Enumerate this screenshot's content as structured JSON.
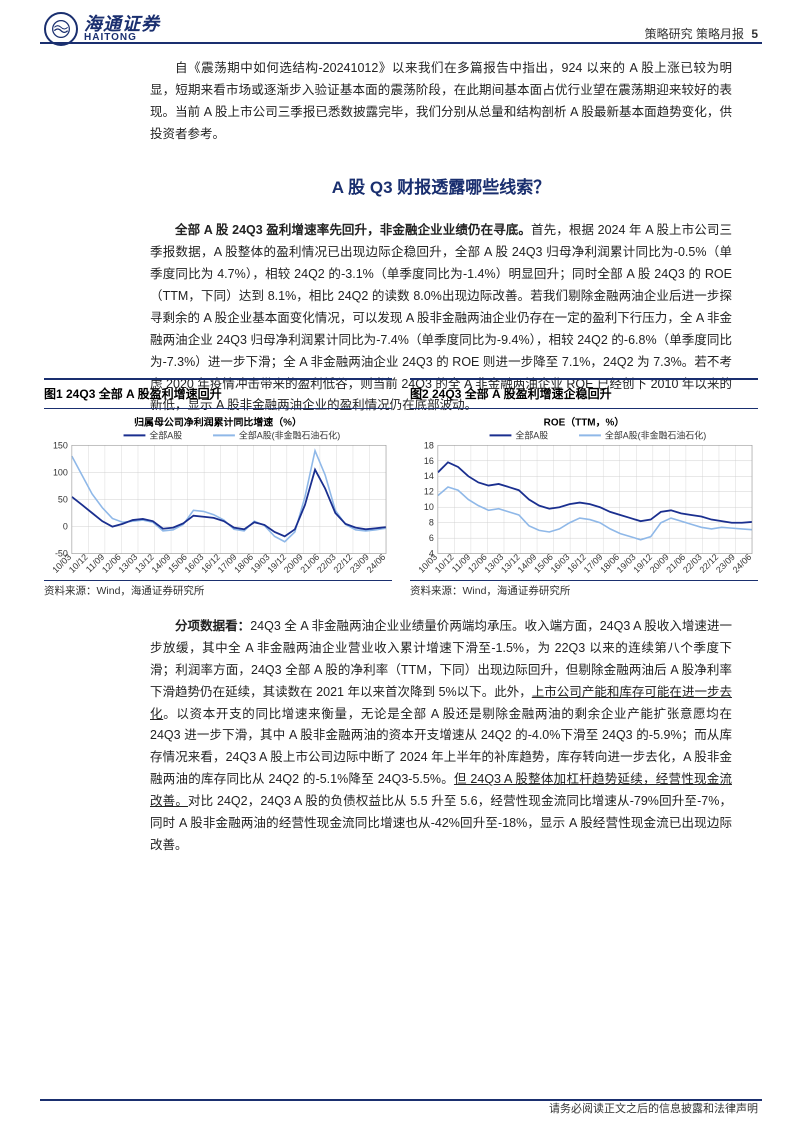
{
  "header": {
    "brand_cn": "海通证券",
    "brand_en": "HAITONG",
    "right": "策略研究 策略月报",
    "page_num": "5"
  },
  "intro_para": "自《震荡期中如何选结构-20241012》以来我们在多篇报告中指出，924 以来的 A 股上涨已较为明显，短期来看市场或逐渐步入验证基本面的震荡阶段，在此期间基本面占优行业望在震荡期迎来较好的表现。当前 A 股上市公司三季报已悉数披露完毕，我们分别从总量和结构剖析 A 股最新基本面趋势变化，供投资者参考。",
  "main_title": "A 股 Q3 财报透露哪些线索？",
  "para2_lead": "全部 A 股 24Q3 盈利增速率先回升，非金融企业业绩仍在寻底。",
  "para2_rest": "首先，根据 2024 年 A 股上市公司三季报数据，A 股整体的盈利情况已出现边际企稳回升，全部 A 股 24Q3 归母净利润累计同比为-0.5%（单季度同比为 4.7%），相较 24Q2 的-3.1%（单季度同比为-1.4%）明显回升；同时全部 A 股 24Q3 的 ROE（TTM，下同）达到 8.1%，相比 24Q2 的读数 8.0%出现边际改善。若我们剔除金融两油企业后进一步探寻剩余的 A 股企业基本面变化情况，可以发现 A 股非金融两油企业仍存在一定的盈利下行压力，全 A 非金融两油企业 24Q3 归母净利润累计同比为-7.4%（单季度同比为-9.4%），相较 24Q2 的-6.8%（单季度同比为-7.3%）进一步下滑；全 A 非金融两油企业 24Q3 的 ROE 则进一步降至 7.1%，24Q2 为 7.3%。若不考虑 2020 年疫情冲击带来的盈利低谷，则当前 24Q3 的全 A 非金融两油企业 ROE 已经创下 2010 年以来的新低，显示 A 股非金融两油企业的盈利情况仍在底部波动。",
  "para3_lead": "分项数据看：",
  "para3_rest_a": "24Q3 全 A 非金融两油企业业绩量价两端均承压。收入端方面，24Q3 A 股收入增速进一步放缓，其中全 A 非金融两油企业营业收入累计增速下滑至-1.5%，为 22Q3 以来的连续第八个季度下滑；利润率方面，24Q3 全部 A 股的净利率（TTM，下同）出现边际回升，但剔除金融两油后 A 股净利率下滑趋势仍在延续，其读数在 2021 年以来首次降到 5%以下。此外，",
  "para3_ul_1": "上市公司产能和库存可能在进一步去化",
  "para3_rest_b": "。以资本开支的同比增速来衡量，无论是全部 A 股还是剔除金融两油的剩余企业产能扩张意愿均在 24Q3 进一步下滑，其中 A 股非金融两油的资本开支增速从 24Q2 的-4.0%下滑至 24Q3 的-5.9%；而从库存情况来看，24Q3 A 股上市公司边际中断了 2024 年上半年的补库趋势，库存转向进一步去化，A 股非金融两油的库存同比从 24Q2 的-5.1%降至 24Q3-5.5%。",
  "para3_ul_2": "但 24Q3 A 股整体加杠杆趋势延续，经营性现金流改善。",
  "para3_rest_c": "对比 24Q2，24Q3 A 股的负债权益比从 5.5 升至 5.6，经营性现金流同比增速从-79%回升至-7%，同时 A 股非金融两油的经营性现金流同比增速也从-42%回升至-18%，显示 A 股经营性现金流已出现边际改善。",
  "chart1": {
    "title": "图1  24Q3 全部 A 股盈利增速回升",
    "inner_title": "归属母公司净利润累计同比增速（%）",
    "legend": [
      "全部A股",
      "全部A股(非金融石油石化)"
    ],
    "source": "资料来源：Wind，海通证券研究所",
    "ylim": [
      -50,
      150
    ],
    "yticks": [
      -50,
      0,
      50,
      100,
      150
    ],
    "xticks": [
      "10/03",
      "10/12",
      "11/09",
      "12/06",
      "13/03",
      "13/12",
      "14/09",
      "15/06",
      "16/03",
      "16/12",
      "17/09",
      "18/06",
      "19/03",
      "19/12",
      "20/09",
      "21/06",
      "22/03",
      "22/12",
      "23/09",
      "24/06"
    ],
    "series_colors": [
      "#1a2f8f",
      "#8fb8e8"
    ],
    "grid_color": "#d0d0d0",
    "bg": "#ffffff",
    "s1": [
      55,
      40,
      25,
      10,
      0,
      5,
      12,
      14,
      10,
      -4,
      -2,
      6,
      20,
      18,
      16,
      10,
      -2,
      -5,
      8,
      3,
      -10,
      -18,
      -5,
      40,
      105,
      70,
      25,
      5,
      -2,
      -5,
      -3,
      -1
    ],
    "s2": [
      130,
      95,
      60,
      35,
      15,
      8,
      10,
      12,
      8,
      -8,
      -6,
      4,
      30,
      28,
      22,
      12,
      -5,
      -8,
      10,
      2,
      -18,
      -28,
      -10,
      55,
      140,
      95,
      30,
      4,
      -6,
      -8,
      -6,
      -3
    ]
  },
  "chart2": {
    "title": "图2  24Q3 全部 A 股盈利增速企稳回升",
    "inner_title": "ROE（TTM，%）",
    "legend": [
      "全部A股",
      "全部A股(非金融石油石化)"
    ],
    "source": "资料来源：Wind，海通证券研究所",
    "ylim": [
      4,
      18
    ],
    "yticks": [
      4,
      6,
      8,
      10,
      12,
      14,
      16,
      18
    ],
    "xticks": [
      "10/03",
      "10/12",
      "11/09",
      "12/06",
      "13/03",
      "13/12",
      "14/09",
      "15/06",
      "16/03",
      "16/12",
      "17/09",
      "18/06",
      "19/03",
      "19/12",
      "20/09",
      "21/06",
      "22/03",
      "22/12",
      "23/09",
      "24/06"
    ],
    "series_colors": [
      "#1a2f8f",
      "#8fb8e8"
    ],
    "grid_color": "#d0d0d0",
    "bg": "#ffffff",
    "s1": [
      14.5,
      15.8,
      15.2,
      14.0,
      13.2,
      12.8,
      13.0,
      12.6,
      12.2,
      11.0,
      10.2,
      9.8,
      10.0,
      10.4,
      10.6,
      10.4,
      10.0,
      9.4,
      9.0,
      8.6,
      8.2,
      8.4,
      9.4,
      9.6,
      9.2,
      9.0,
      8.8,
      8.4,
      8.2,
      8.0,
      8.0,
      8.1
    ],
    "s2": [
      11.5,
      12.6,
      12.2,
      11.0,
      10.2,
      9.6,
      9.8,
      9.4,
      9.0,
      7.6,
      7.0,
      6.8,
      7.2,
      8.0,
      8.6,
      8.4,
      8.0,
      7.2,
      6.6,
      6.2,
      5.8,
      6.2,
      8.0,
      8.6,
      8.2,
      7.8,
      7.4,
      7.2,
      7.4,
      7.3,
      7.2,
      7.1
    ]
  },
  "footer": "请务必阅读正文之后的信息披露和法律声明"
}
